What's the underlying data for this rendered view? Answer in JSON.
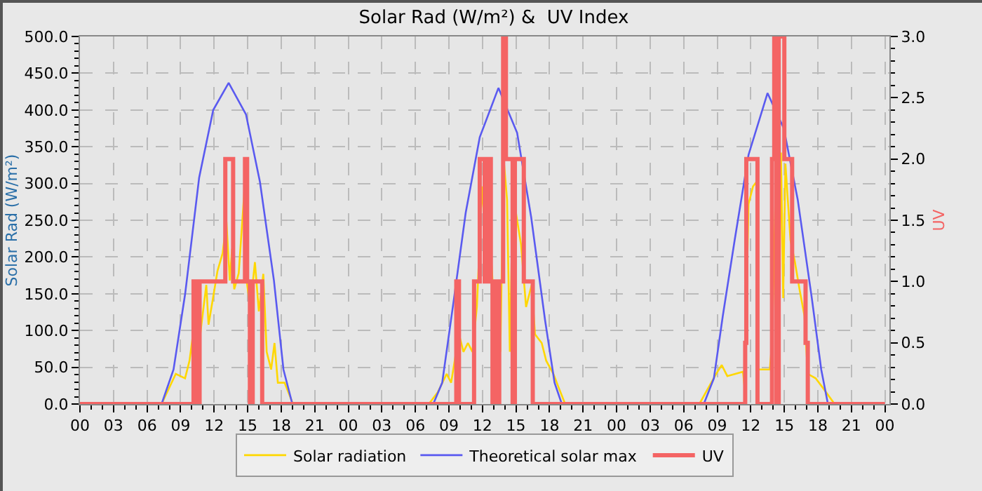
{
  "chart_data": {
    "type": "line",
    "title": "Solar Rad (W/m²) &  UV Index",
    "ylabel": "Solar Rad (W/m²)",
    "y2label": "UV",
    "xlim": [
      0,
      72.4
    ],
    "xticks": [
      {
        "value": 0,
        "label": "00"
      },
      {
        "value": 3,
        "label": "03"
      },
      {
        "value": 6,
        "label": "06"
      },
      {
        "value": 9,
        "label": "09"
      },
      {
        "value": 12,
        "label": "12"
      },
      {
        "value": 15,
        "label": "15"
      },
      {
        "value": 18,
        "label": "18"
      },
      {
        "value": 21,
        "label": "21"
      },
      {
        "value": 24,
        "label": "00"
      },
      {
        "value": 27,
        "label": "03"
      },
      {
        "value": 30,
        "label": "06"
      },
      {
        "value": 33,
        "label": "09"
      },
      {
        "value": 36,
        "label": "12"
      },
      {
        "value": 39,
        "label": "15"
      },
      {
        "value": 42,
        "label": "18"
      },
      {
        "value": 45,
        "label": "21"
      },
      {
        "value": 48,
        "label": "00"
      },
      {
        "value": 51,
        "label": "03"
      },
      {
        "value": 54,
        "label": "06"
      },
      {
        "value": 57,
        "label": "09"
      },
      {
        "value": 60,
        "label": "12"
      },
      {
        "value": 63,
        "label": "15"
      },
      {
        "value": 66,
        "label": "18"
      },
      {
        "value": 69,
        "label": "21"
      },
      {
        "value": 72,
        "label": "00"
      }
    ],
    "ylim": [
      0,
      500
    ],
    "yticks": [
      {
        "value": 0,
        "label": "0.0"
      },
      {
        "value": 50,
        "label": "50.0"
      },
      {
        "value": 100,
        "label": "100.0"
      },
      {
        "value": 150,
        "label": "150.0"
      },
      {
        "value": 200,
        "label": "200.0"
      },
      {
        "value": 250,
        "label": "250.0"
      },
      {
        "value": 300,
        "label": "300.0"
      },
      {
        "value": 350,
        "label": "350.0"
      },
      {
        "value": 400,
        "label": "400.0"
      },
      {
        "value": 450,
        "label": "450.0"
      },
      {
        "value": 500,
        "label": "500.0"
      }
    ],
    "y2lim": [
      0,
      3
    ],
    "y2ticks": [
      {
        "value": 0,
        "label": "0.0"
      },
      {
        "value": 0.5,
        "label": "0.5"
      },
      {
        "value": 1,
        "label": "1.0"
      },
      {
        "value": 1.5,
        "label": "1.5"
      },
      {
        "value": 2,
        "label": "2.0"
      },
      {
        "value": 2.5,
        "label": "2.5"
      },
      {
        "value": 3,
        "label": "3.0"
      }
    ],
    "grid": true,
    "legend": "bottom",
    "marker": "none",
    "line_style": "solid",
    "series": [
      {
        "name": "UV",
        "type": "step",
        "axis": "y2",
        "color": "#f46464",
        "x": [
          0,
          10.16,
          10.4,
          10.7,
          13.0,
          13.7,
          14.76,
          14.95,
          15.2,
          15.45,
          16.3,
          16.6,
          33.66,
          33.9,
          35.25,
          35.76,
          36.2,
          36.4,
          36.75,
          36.9,
          37.1,
          37.3,
          37.5,
          37.85,
          38.1,
          38.7,
          38.9,
          39.7,
          40.5,
          59.5,
          59.6,
          60.6,
          61.9,
          62.1,
          62.3,
          62.5,
          63.0,
          63.7,
          64.9,
          65.1,
          72
        ],
        "values": [
          0,
          1,
          0,
          1,
          2,
          1,
          2,
          1,
          0,
          1,
          0,
          0,
          1,
          0,
          1,
          2,
          1,
          2,
          1,
          0,
          1,
          0,
          1,
          3,
          2,
          0,
          2,
          1,
          0,
          0.5,
          2,
          0,
          2,
          3,
          0,
          3,
          2,
          1,
          0.5,
          0,
          0
        ]
      },
      {
        "name": "Solar radiation",
        "color": "#ffd700",
        "x": [
          0,
          7.3,
          8.57,
          9.4,
          9.8,
          10.33,
          10.66,
          11.3,
          11.5,
          11.9,
          12.3,
          12.76,
          13.1,
          13.4,
          13.6,
          13.8,
          14.2,
          14.76,
          14.9,
          15.23,
          15.65,
          16.0,
          16.4,
          16.7,
          17.1,
          17.4,
          17.7,
          18.3,
          19.0,
          19.3,
          31.2,
          32.0,
          32.8,
          33.2,
          33.9,
          34.3,
          34.7,
          35.1,
          35.5,
          35.97,
          36.4,
          36.7,
          37.0,
          37.4,
          37.6,
          37.9,
          38.2,
          38.45,
          38.7,
          39.0,
          39.45,
          39.9,
          40.4,
          40.7,
          41.3,
          41.7,
          42.35,
          42.8,
          43.4,
          55.4,
          56.9,
          57.4,
          57.9,
          59.3,
          59.45,
          59.8,
          60.2,
          60.5,
          60.65,
          61.7,
          61.9,
          62.3,
          62.5,
          62.7,
          62.9,
          63.1,
          63.55,
          63.95,
          64.35,
          64.8,
          65.1,
          65.8,
          66.4,
          67.5,
          72
        ],
        "values": [
          0,
          0,
          41,
          35,
          59,
          120,
          83,
          162,
          108,
          144,
          181,
          205,
          248,
          168,
          211,
          156,
          178,
          302,
          168,
          132,
          193,
          126,
          177,
          71,
          47,
          83,
          29,
          29,
          2,
          0,
          0,
          16,
          41,
          29,
          95,
          71,
          83,
          71,
          132,
          296,
          193,
          217,
          144,
          132,
          71,
          333,
          278,
          71,
          272,
          260,
          217,
          132,
          162,
          95,
          83,
          59,
          41,
          23,
          0,
          0,
          41,
          53,
          38,
          44,
          23,
          272,
          296,
          302,
          47,
          47,
          83,
          339,
          83,
          342,
          144,
          327,
          223,
          193,
          157,
          120,
          41,
          35,
          23,
          0,
          0
        ]
      },
      {
        "name": "Theoretical solar max",
        "color": "#5a5af0",
        "x": [
          0,
          7.3,
          8.37,
          9.41,
          10.66,
          11.92,
          13.3,
          14.85,
          16.1,
          17.35,
          18.2,
          19.0,
          31.6,
          32.4,
          33.46,
          34.5,
          35.76,
          37.43,
          39.1,
          40.36,
          41.6,
          42.45,
          43.1,
          55.8,
          56.7,
          57.5,
          58.56,
          59.8,
          61.5,
          62.95,
          64.2,
          65.46,
          66.3,
          66.9,
          72
        ],
        "values": [
          0,
          0,
          47,
          150,
          308,
          400,
          437,
          394,
          302,
          168,
          47,
          0,
          0,
          29,
          144,
          260,
          363,
          430,
          369,
          254,
          114,
          29,
          0,
          0,
          35,
          120,
          223,
          339,
          423,
          375,
          278,
          144,
          47,
          0,
          0
        ]
      }
    ]
  }
}
